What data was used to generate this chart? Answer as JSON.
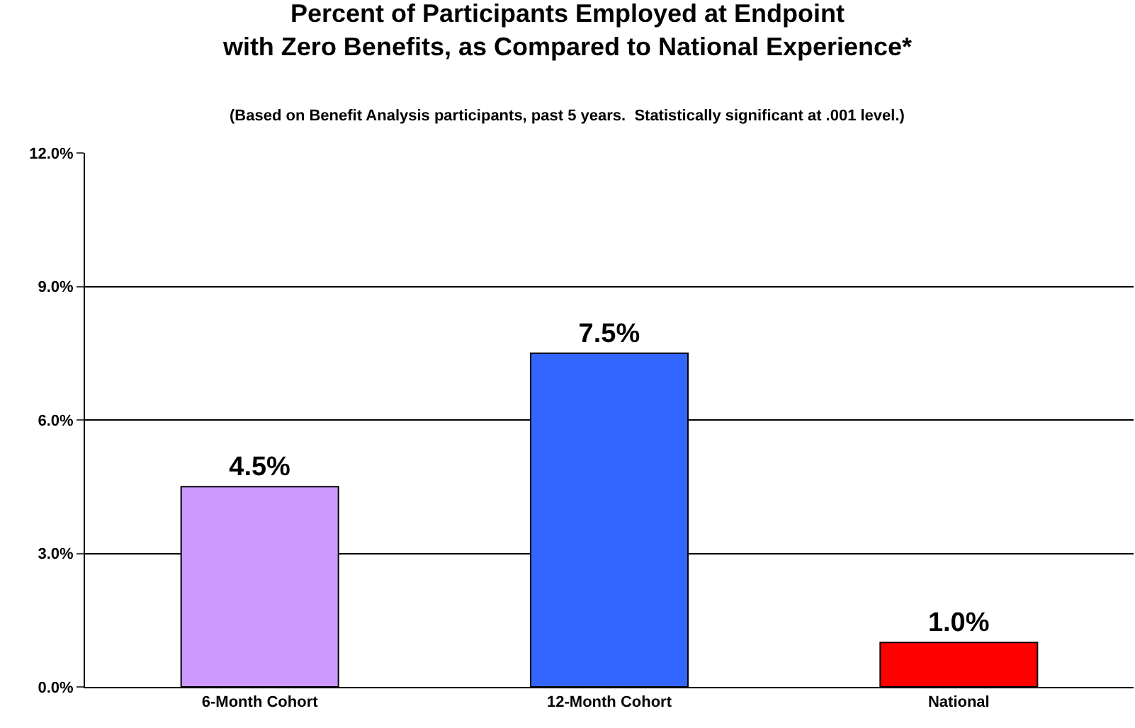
{
  "chart_data": {
    "type": "bar",
    "title": "Percent of Participants Employed at Endpoint\nwith Zero Benefits, as Compared to National Experience*",
    "subtitle": "(Based on Benefit Analysis participants, past 5 years.  Statistically significant at .001 level.)",
    "categories": [
      "6-Month Cohort",
      "12-Month Cohort",
      "National"
    ],
    "values": [
      4.5,
      7.5,
      1.0
    ],
    "colors": [
      "#cc99ff",
      "#3366ff",
      "#ff0000"
    ],
    "value_labels": [
      "4.5%",
      "7.5%",
      "1.0%"
    ],
    "ylim": [
      0,
      12
    ],
    "yticks": [
      {
        "value": 0,
        "label": "0.0%"
      },
      {
        "value": 3,
        "label": "3.0%"
      },
      {
        "value": 6,
        "label": "6.0%"
      },
      {
        "value": 9,
        "label": "9.0%"
      },
      {
        "value": 12,
        "label": "12.0%"
      }
    ],
    "grid": "y",
    "legend": false
  }
}
